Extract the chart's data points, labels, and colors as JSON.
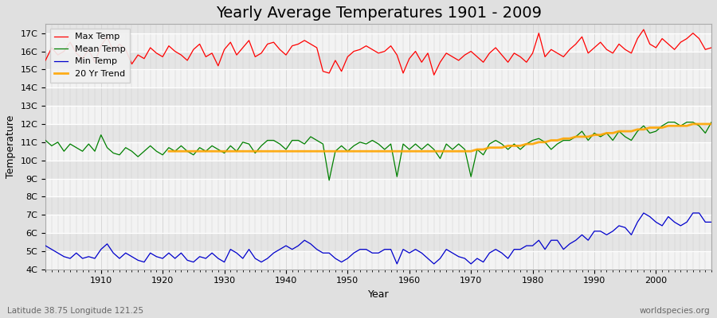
{
  "title": "Yearly Average Temperatures 1901 - 2009",
  "xlabel": "Year",
  "ylabel": "Temperature",
  "subtitle_left": "Latitude 38.75 Longitude 121.25",
  "subtitle_right": "worldspecies.org",
  "years": [
    1901,
    1902,
    1903,
    1904,
    1905,
    1906,
    1907,
    1908,
    1909,
    1910,
    1911,
    1912,
    1913,
    1914,
    1915,
    1916,
    1917,
    1918,
    1919,
    1920,
    1921,
    1922,
    1923,
    1924,
    1925,
    1926,
    1927,
    1928,
    1929,
    1930,
    1931,
    1932,
    1933,
    1934,
    1935,
    1936,
    1937,
    1938,
    1939,
    1940,
    1941,
    1942,
    1943,
    1944,
    1945,
    1946,
    1947,
    1948,
    1949,
    1950,
    1951,
    1952,
    1953,
    1954,
    1955,
    1956,
    1957,
    1958,
    1959,
    1960,
    1961,
    1962,
    1963,
    1964,
    1965,
    1966,
    1967,
    1968,
    1969,
    1970,
    1971,
    1972,
    1973,
    1974,
    1975,
    1976,
    1977,
    1978,
    1979,
    1980,
    1981,
    1982,
    1983,
    1984,
    1985,
    1986,
    1987,
    1988,
    1989,
    1990,
    1991,
    1992,
    1993,
    1994,
    1995,
    1996,
    1997,
    1998,
    1999,
    2000,
    2001,
    2002,
    2003,
    2004,
    2005,
    2006,
    2007,
    2008,
    2009
  ],
  "max_temp": [
    15.5,
    16.2,
    15.8,
    16.0,
    16.5,
    15.9,
    15.6,
    16.1,
    15.4,
    16.3,
    16.8,
    16.0,
    16.4,
    16.1,
    15.3,
    15.8,
    15.6,
    16.2,
    15.9,
    15.7,
    16.3,
    16.0,
    15.8,
    15.5,
    16.1,
    16.4,
    15.7,
    15.9,
    15.2,
    16.1,
    16.5,
    15.8,
    16.2,
    16.6,
    15.7,
    15.9,
    16.4,
    16.5,
    16.1,
    15.8,
    16.3,
    16.4,
    16.6,
    16.4,
    16.2,
    14.9,
    14.8,
    15.5,
    14.9,
    15.7,
    16.0,
    16.1,
    16.3,
    16.1,
    15.9,
    16.0,
    16.3,
    15.8,
    14.8,
    15.6,
    16.0,
    15.4,
    15.9,
    14.7,
    15.4,
    15.9,
    15.7,
    15.5,
    15.8,
    16.0,
    15.7,
    15.4,
    15.9,
    16.2,
    15.8,
    15.4,
    15.9,
    15.7,
    15.4,
    15.9,
    17.0,
    15.7,
    16.1,
    15.9,
    15.7,
    16.1,
    16.4,
    16.8,
    15.9,
    16.2,
    16.5,
    16.1,
    15.9,
    16.4,
    16.1,
    15.9,
    16.7,
    17.2,
    16.4,
    16.2,
    16.7,
    16.4,
    16.1,
    16.5,
    16.7,
    17.0,
    16.7,
    16.1,
    16.2
  ],
  "mean_temp": [
    11.1,
    10.8,
    11.0,
    10.5,
    10.9,
    10.7,
    10.5,
    10.9,
    10.5,
    11.4,
    10.7,
    10.4,
    10.3,
    10.7,
    10.5,
    10.2,
    10.5,
    10.8,
    10.5,
    10.3,
    10.7,
    10.5,
    10.8,
    10.5,
    10.3,
    10.7,
    10.5,
    10.8,
    10.6,
    10.4,
    10.8,
    10.5,
    11.0,
    10.9,
    10.4,
    10.8,
    11.1,
    11.1,
    10.9,
    10.6,
    11.1,
    11.1,
    10.9,
    11.3,
    11.1,
    10.9,
    8.9,
    10.5,
    10.8,
    10.5,
    10.8,
    11.0,
    10.9,
    11.1,
    10.9,
    10.6,
    10.9,
    9.1,
    10.9,
    10.6,
    10.9,
    10.6,
    10.9,
    10.6,
    10.1,
    10.9,
    10.6,
    10.9,
    10.6,
    9.1,
    10.6,
    10.3,
    10.9,
    11.1,
    10.9,
    10.6,
    10.9,
    10.6,
    10.9,
    11.1,
    11.2,
    11.0,
    10.6,
    10.9,
    11.1,
    11.1,
    11.3,
    11.6,
    11.1,
    11.5,
    11.3,
    11.5,
    11.1,
    11.6,
    11.3,
    11.1,
    11.6,
    11.9,
    11.5,
    11.6,
    11.9,
    12.1,
    12.1,
    11.9,
    12.1,
    12.1,
    11.9,
    11.5,
    12.1
  ],
  "min_temp": [
    5.3,
    5.1,
    4.9,
    4.7,
    4.6,
    4.9,
    4.6,
    4.7,
    4.6,
    5.1,
    5.4,
    4.9,
    4.6,
    4.9,
    4.7,
    4.5,
    4.4,
    4.9,
    4.7,
    4.6,
    4.9,
    4.6,
    4.9,
    4.5,
    4.4,
    4.7,
    4.6,
    4.9,
    4.6,
    4.4,
    5.1,
    4.9,
    4.6,
    5.1,
    4.6,
    4.4,
    4.6,
    4.9,
    5.1,
    5.3,
    5.1,
    5.3,
    5.6,
    5.4,
    5.1,
    4.9,
    4.9,
    4.6,
    4.4,
    4.6,
    4.9,
    5.1,
    5.1,
    4.9,
    4.9,
    5.1,
    5.1,
    4.3,
    5.1,
    4.9,
    5.1,
    4.9,
    4.6,
    4.3,
    4.6,
    5.1,
    4.9,
    4.7,
    4.6,
    4.3,
    4.6,
    4.4,
    4.9,
    5.1,
    4.9,
    4.6,
    5.1,
    5.1,
    5.3,
    5.3,
    5.6,
    5.1,
    5.6,
    5.6,
    5.1,
    5.4,
    5.6,
    5.9,
    5.6,
    6.1,
    6.1,
    5.9,
    6.1,
    6.4,
    6.3,
    5.9,
    6.6,
    7.1,
    6.9,
    6.6,
    6.4,
    6.9,
    6.6,
    6.4,
    6.6,
    7.1,
    7.1,
    6.6,
    6.6
  ],
  "trend_years": [
    1921,
    1922,
    1923,
    1924,
    1925,
    1926,
    1927,
    1928,
    1929,
    1930,
    1931,
    1932,
    1933,
    1934,
    1935,
    1936,
    1937,
    1938,
    1939,
    1940,
    1941,
    1942,
    1943,
    1944,
    1945,
    1946,
    1947,
    1948,
    1949,
    1950,
    1951,
    1952,
    1953,
    1954,
    1955,
    1956,
    1957,
    1958,
    1959,
    1960,
    1961,
    1962,
    1963,
    1964,
    1965,
    1966,
    1967,
    1968,
    1969,
    1970,
    1971,
    1972,
    1973,
    1974,
    1975,
    1976,
    1977,
    1978,
    1979,
    1980,
    1981,
    1982,
    1983,
    1984,
    1985,
    1986,
    1987,
    1988,
    1989,
    1990,
    1991,
    1992,
    1993,
    1994,
    1995,
    1996,
    1997,
    1998,
    1999,
    2000,
    2001,
    2002,
    2003,
    2004,
    2005,
    2006,
    2007,
    2008,
    2009
  ],
  "trend_vals": [
    10.5,
    10.5,
    10.5,
    10.5,
    10.5,
    10.5,
    10.5,
    10.5,
    10.5,
    10.5,
    10.5,
    10.5,
    10.5,
    10.5,
    10.5,
    10.5,
    10.5,
    10.5,
    10.5,
    10.5,
    10.5,
    10.5,
    10.5,
    10.5,
    10.5,
    10.5,
    10.5,
    10.5,
    10.5,
    10.5,
    10.5,
    10.5,
    10.5,
    10.5,
    10.5,
    10.5,
    10.5,
    10.5,
    10.5,
    10.5,
    10.5,
    10.5,
    10.5,
    10.5,
    10.5,
    10.5,
    10.5,
    10.5,
    10.5,
    10.5,
    10.6,
    10.6,
    10.7,
    10.7,
    10.7,
    10.8,
    10.8,
    10.8,
    10.9,
    10.9,
    11.0,
    11.0,
    11.1,
    11.1,
    11.2,
    11.2,
    11.3,
    11.3,
    11.3,
    11.4,
    11.4,
    11.5,
    11.5,
    11.6,
    11.6,
    11.6,
    11.7,
    11.7,
    11.8,
    11.8,
    11.8,
    11.9,
    11.9,
    11.9,
    11.9,
    12.0,
    12.0,
    12.0,
    12.0
  ],
  "colors": {
    "max": "#ff0000",
    "mean": "#008000",
    "min": "#0000cc",
    "trend": "#ffa500",
    "background": "#e0e0e0",
    "plot_bg": "#e8e8e8",
    "grid_major": "#ffffff",
    "grid_minor": "#d8d8d8",
    "title": "#000000",
    "subtitle": "#666666",
    "legend_bg": "#f0f0f0",
    "legend_edge": "#cccccc"
  },
  "ylim": [
    4.0,
    17.5
  ],
  "yticks": [
    4,
    5,
    6,
    7,
    8,
    9,
    10,
    11,
    12,
    13,
    14,
    15,
    16,
    17
  ],
  "ytick_labels": [
    "4C",
    "5C",
    "6C",
    "7C",
    "8C",
    "9C",
    "10C",
    "11C",
    "12C",
    "13C",
    "14C",
    "15C",
    "16C",
    "17C"
  ],
  "xlim": [
    1901,
    2009
  ],
  "xticks": [
    1910,
    1920,
    1930,
    1940,
    1950,
    1960,
    1970,
    1980,
    1990,
    2000
  ],
  "legend_loc": "upper left",
  "legend_entries": [
    "Max Temp",
    "Mean Temp",
    "Min Temp",
    "20 Yr Trend"
  ],
  "title_fontsize": 14,
  "axis_label_fontsize": 9,
  "tick_fontsize": 8,
  "legend_fontsize": 8,
  "linewidth": 0.9,
  "trend_linewidth": 2.0
}
